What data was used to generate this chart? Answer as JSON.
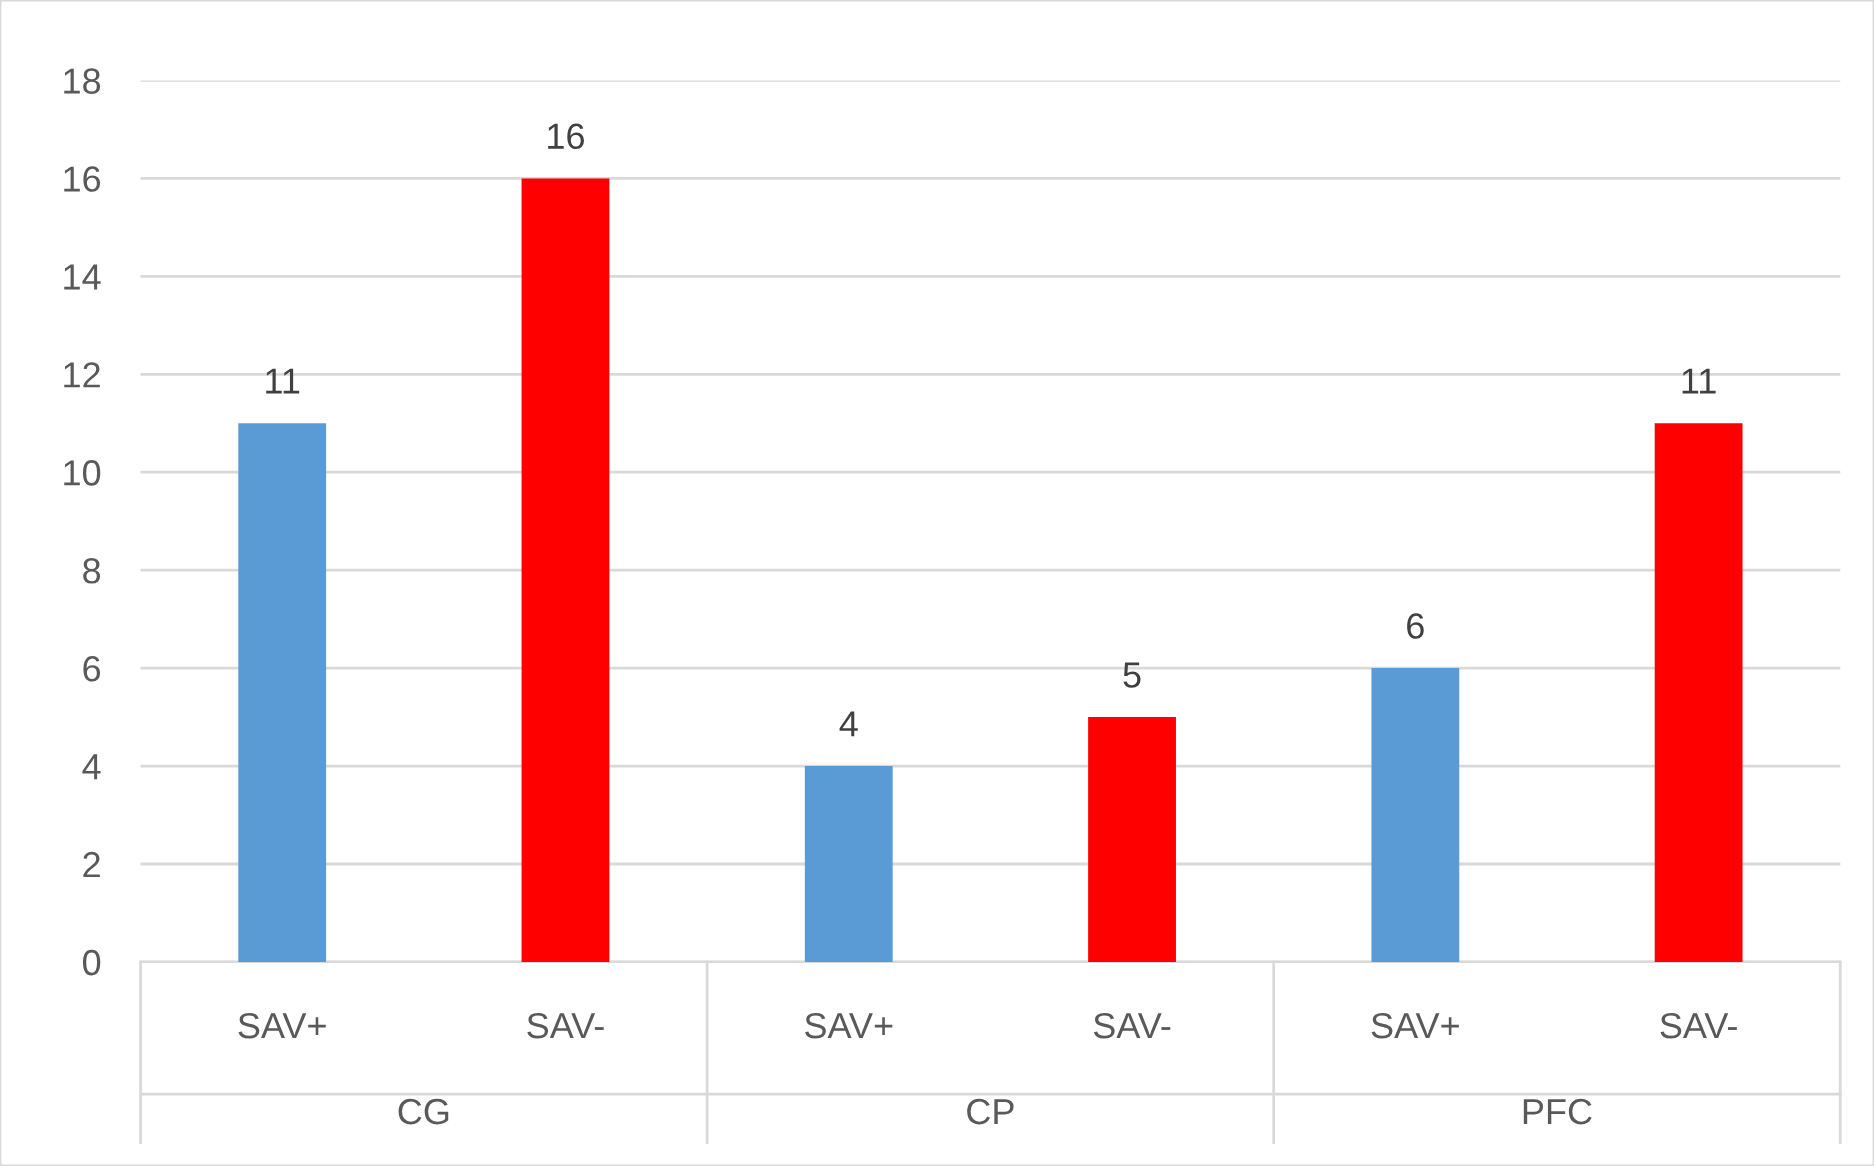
{
  "chart_data": {
    "type": "bar",
    "categories": [
      "SAV+",
      "SAV-",
      "SAV+",
      "SAV-",
      "SAV+",
      "SAV-"
    ],
    "values": [
      11,
      16,
      4,
      5,
      6,
      11
    ],
    "colors": [
      "#5b9bd5",
      "#ff0000",
      "#5b9bd5",
      "#ff0000",
      "#5b9bd5",
      "#ff0000"
    ],
    "annotations": [
      "CG",
      "CP",
      "PFC"
    ],
    "ylim": [
      0,
      18
    ],
    "yticks": [
      0,
      2,
      4,
      6,
      8,
      10,
      12,
      14,
      16,
      18
    ],
    "grid": "y",
    "data_labels": true
  }
}
